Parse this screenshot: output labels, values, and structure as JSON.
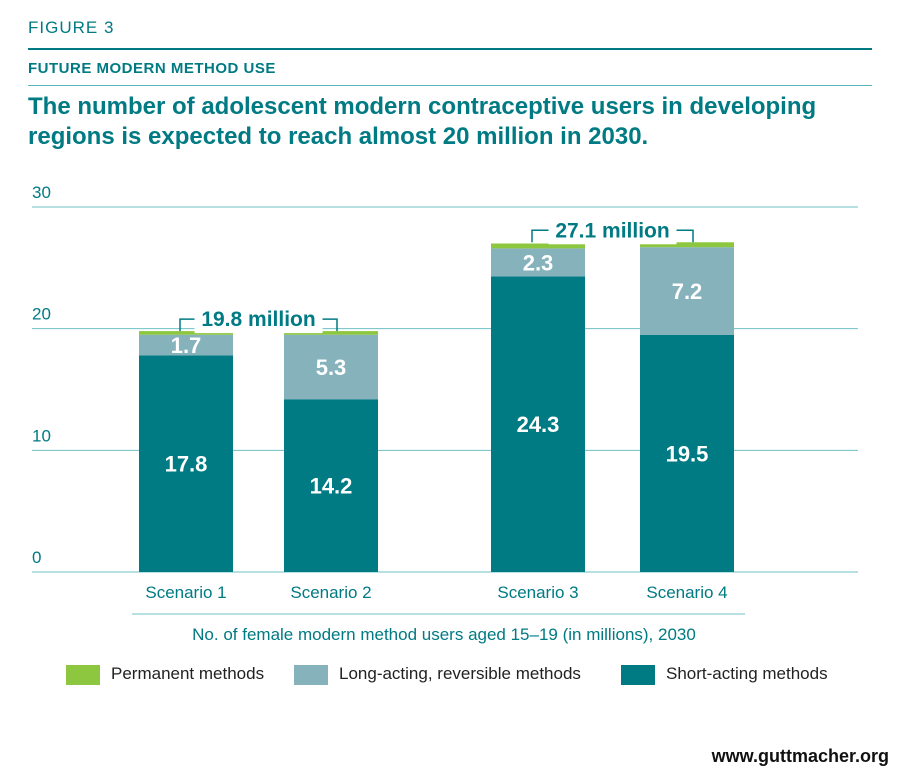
{
  "header": {
    "figure_label": "FIGURE 3",
    "subtitle": "FUTURE MODERN METHOD USE",
    "title": "The number of adolescent modern contraceptive users in developing regions is expected to reach almost 20 million in 2030."
  },
  "colors": {
    "teal": "#007a83",
    "permanent": "#8dc63f",
    "long_acting": "#86b2bb",
    "short_acting": "#007a83",
    "gridline": "#6fc0c5"
  },
  "chart_data": {
    "type": "bar",
    "stacked": true,
    "categories": [
      "Scenario 1",
      "Scenario 2",
      "Scenario 3",
      "Scenario 4"
    ],
    "series": [
      {
        "name": "Short-acting methods",
        "values": [
          17.8,
          14.2,
          24.3,
          19.5
        ],
        "labels": [
          "17.8",
          "14.2",
          "24.3",
          "19.5"
        ]
      },
      {
        "name": "Long-acting, reversible methods",
        "values": [
          1.7,
          5.3,
          2.3,
          7.2
        ],
        "labels": [
          "1.7",
          "5.3",
          "2.3",
          "7.2"
        ]
      },
      {
        "name": "Permanent methods",
        "values": [
          0.3,
          0.3,
          0.4,
          0.4
        ]
      }
    ],
    "ylim": [
      0,
      30
    ],
    "yticks": [
      "0",
      "10",
      "20",
      "30"
    ],
    "xlabel": "No. of female modern method users aged 15–19 (in millions), 2030",
    "grid": true,
    "legend_position": "bottom",
    "brackets": [
      {
        "label": "19.8 million",
        "from": "Scenario 1",
        "to": "Scenario 2",
        "value": 19.8
      },
      {
        "label": "27.1 million",
        "from": "Scenario 3",
        "to": "Scenario 4",
        "value": 27.1
      }
    ]
  },
  "legend": {
    "items": [
      {
        "label": "Permanent methods"
      },
      {
        "label": "Long-acting, reversible methods"
      },
      {
        "label": "Short-acting methods"
      }
    ]
  },
  "footer": {
    "source": "www.guttmacher.org"
  }
}
